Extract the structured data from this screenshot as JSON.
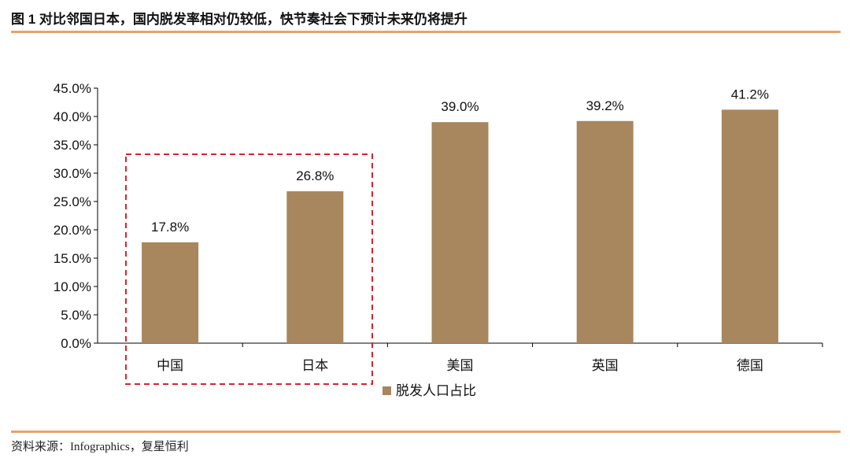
{
  "title": "图 1 对比邻国日本，国内脱发率相对仍较低，快节奏社会下预计未来仍将提升",
  "source": "资料来源：Infographics，复星恒利",
  "colors": {
    "bar": "#a8865e",
    "rule": "#e8a36b",
    "highlight_box": "#d9232e"
  },
  "chart_data": {
    "type": "bar",
    "categories": [
      "中国",
      "日本",
      "美国",
      "英国",
      "德国"
    ],
    "series": [
      {
        "name": "脱发人口占比",
        "values": [
          17.8,
          26.8,
          39.0,
          39.2,
          41.2
        ]
      }
    ],
    "data_labels": [
      "17.8%",
      "26.8%",
      "39.0%",
      "39.2%",
      "41.2%"
    ],
    "y_ticks": [
      "0.0%",
      "5.0%",
      "10.0%",
      "15.0%",
      "20.0%",
      "25.0%",
      "30.0%",
      "35.0%",
      "40.0%",
      "45.0%"
    ],
    "ylim": [
      0,
      45
    ],
    "grid": false,
    "legend": "bottom",
    "highlighted_categories": [
      "中国",
      "日本"
    ]
  }
}
